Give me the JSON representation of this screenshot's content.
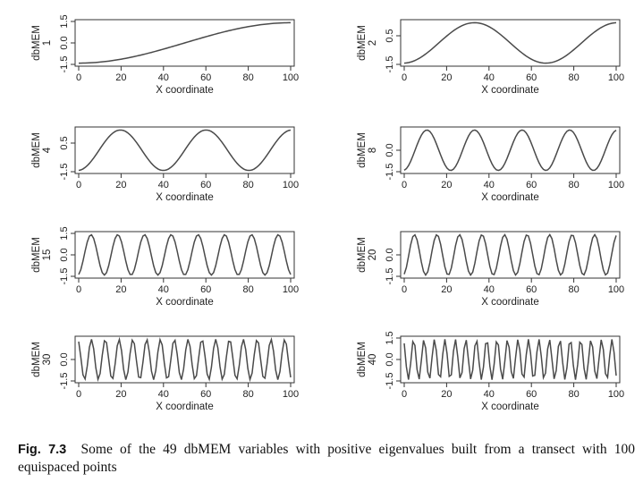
{
  "figure": {
    "label": "Fig. 7.3",
    "caption": "Some of the 49 dbMEM variables with positive eigenvalues built from a transect with 100 equispaced points"
  },
  "chart_data": [
    {
      "type": "line",
      "ylabel": "dbMEM",
      "panel_label": "1",
      "xlabel": "X coordinate",
      "xticks": [
        0,
        20,
        40,
        60,
        80,
        100
      ],
      "yticks": [
        -1.5,
        0.0,
        1.5
      ],
      "ytick_labels": [
        "-1.5",
        "0.0",
        "1.5"
      ],
      "xlim": [
        1,
        100
      ],
      "ylim": [
        -1.5,
        1.5
      ],
      "series": [
        {
          "function": "sqrt(2)*cos(pi*k*(x-0.5)/100)",
          "k": 1,
          "sign": -1
        }
      ]
    },
    {
      "type": "line",
      "ylabel": "dbMEM",
      "panel_label": "2",
      "xlabel": "X coordinate",
      "xticks": [
        0,
        20,
        40,
        60,
        80,
        100
      ],
      "yticks": [
        -1.5,
        0.5
      ],
      "ytick_labels": [
        "-1.5",
        "0.5"
      ],
      "xlim": [
        1,
        100
      ],
      "ylim": [
        -1.5,
        1.5
      ],
      "series": [
        {
          "function": "sqrt(2)*cos(pi*k*(x-0.5)/100)",
          "k": 3,
          "sign": -1
        }
      ]
    },
    {
      "type": "line",
      "ylabel": "dbMEM",
      "panel_label": "4",
      "xlabel": "X coordinate",
      "xticks": [
        0,
        20,
        40,
        60,
        80,
        100
      ],
      "yticks": [
        -1.5,
        0.5
      ],
      "ytick_labels": [
        "-1.5",
        "0.5"
      ],
      "xlim": [
        1,
        100
      ],
      "ylim": [
        -1.5,
        1.5
      ],
      "series": [
        {
          "function": "sqrt(2)*cos(pi*k*(x-0.5)/100)",
          "k": 5,
          "sign": -1
        }
      ]
    },
    {
      "type": "line",
      "ylabel": "dbMEM",
      "panel_label": "8",
      "xlabel": "X coordinate",
      "xticks": [
        0,
        20,
        40,
        60,
        80,
        100
      ],
      "yticks": [
        -1.5,
        0.0
      ],
      "ytick_labels": [
        "-1.5",
        "0.0"
      ],
      "xlim": [
        1,
        100
      ],
      "ylim": [
        -1.5,
        1.5
      ],
      "series": [
        {
          "function": "sqrt(2)*cos(pi*k*(x-0.5)/100)",
          "k": 9,
          "sign": -1
        }
      ]
    },
    {
      "type": "line",
      "ylabel": "dbMEM",
      "panel_label": "15",
      "xlabel": "X coordinate",
      "xticks": [
        0,
        20,
        40,
        60,
        80,
        100
      ],
      "yticks": [
        -1.5,
        0.0,
        1.5
      ],
      "ytick_labels": [
        "-1.5",
        "0.0",
        "1.5"
      ],
      "xlim": [
        1,
        100
      ],
      "ylim": [
        -1.5,
        1.5
      ],
      "series": [
        {
          "function": "sqrt(2)*cos(pi*k*(x-0.5)/100)",
          "k": 16,
          "sign": -1
        }
      ]
    },
    {
      "type": "line",
      "ylabel": "dbMEM",
      "panel_label": "20",
      "xlabel": "X coordinate",
      "xticks": [
        0,
        20,
        40,
        60,
        80,
        100
      ],
      "yticks": [
        -1.5,
        0.0
      ],
      "ytick_labels": [
        "-1.5",
        "0.0"
      ],
      "xlim": [
        1,
        100
      ],
      "ylim": [
        -1.5,
        1.5
      ],
      "series": [
        {
          "function": "sqrt(2)*cos(pi*k*(x-0.5)/100)",
          "k": 19,
          "sign": -1
        }
      ]
    },
    {
      "type": "line",
      "ylabel": "dbMEM",
      "panel_label": "30",
      "xlabel": "X coordinate",
      "xticks": [
        0,
        20,
        40,
        60,
        80,
        100
      ],
      "yticks": [
        -1.5,
        0.0
      ],
      "ytick_labels": [
        "-1.5",
        "0.0"
      ],
      "xlim": [
        1,
        100
      ],
      "ylim": [
        -1.5,
        1.5
      ],
      "series": [
        {
          "function": "sqrt(2)*cos(pi*k*(x-0.5)/100)",
          "k": 31,
          "sign": 1
        }
      ]
    },
    {
      "type": "line",
      "ylabel": "dbMEM",
      "panel_label": "40",
      "xlabel": "X coordinate",
      "xticks": [
        0,
        20,
        40,
        60,
        80,
        100
      ],
      "yticks": [
        -1.5,
        0.0,
        1.5
      ],
      "ytick_labels": [
        "-1.5",
        "0.0",
        "1.5"
      ],
      "xlim": [
        1,
        100
      ],
      "ylim": [
        -1.5,
        1.5
      ],
      "series": [
        {
          "function": "sqrt(2)*cos(pi*k*(x-0.5)/100)",
          "k": 41,
          "sign": 1
        }
      ]
    }
  ]
}
